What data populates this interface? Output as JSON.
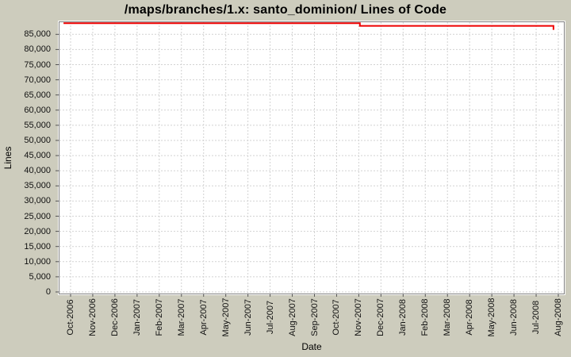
{
  "colors": {
    "page_bg": "#cdccbd",
    "plot_bg": "#ffffff",
    "grid": "#d2d2d2",
    "axis": "#808080",
    "tick": "#555555",
    "series_red": "#ee0000"
  },
  "chart_data": {
    "type": "line",
    "title": "/maps/branches/1.x: santo_dominion/ Lines of Code",
    "xlabel": "Date",
    "ylabel": "Lines",
    "legend": "none",
    "grid": "dashed horizontal and vertical gridlines",
    "ylim": [
      0,
      89000
    ],
    "y_tick_values": [
      0,
      5000,
      10000,
      15000,
      20000,
      25000,
      30000,
      35000,
      40000,
      45000,
      50000,
      55000,
      60000,
      65000,
      70000,
      75000,
      80000,
      85000
    ],
    "y_tick_labels": [
      "0",
      "5,000",
      "10,000",
      "15,000",
      "20,000",
      "25,000",
      "30,000",
      "35,000",
      "40,000",
      "45,000",
      "50,000",
      "55,000",
      "60,000",
      "65,000",
      "70,000",
      "75,000",
      "80,000",
      "85,000"
    ],
    "x_tick_labels": [
      "Oct-2006",
      "Nov-2006",
      "Dec-2006",
      "Jan-2007",
      "Feb-2007",
      "Mar-2007",
      "Apr-2007",
      "May-2007",
      "Jun-2007",
      "Jul-2007",
      "Aug-2007",
      "Sep-2007",
      "Oct-2007",
      "Nov-2007",
      "Dec-2007",
      "Jan-2008",
      "Feb-2008",
      "Mar-2008",
      "Apr-2008",
      "May-2008",
      "Jun-2008",
      "Jul-2008",
      "Aug-2008"
    ],
    "value_note": "values estimated from gridlines",
    "series": [
      {
        "name": "Lines of Code",
        "color": "#ee0000",
        "summary": "Roughly flat near 88,700 lines from Oct-2006 until Nov-2007, small step down to about 87,800, flat until late Jul-2008, ending with a drop to about 86,500.",
        "points": [
          {
            "date": "late Sep-2006",
            "xi": -0.32,
            "value": 88700
          },
          {
            "date": "Nov-2007",
            "xi": 13.05,
            "value": 88700
          },
          {
            "date": "Nov-2007",
            "xi": 13.05,
            "value": 87800
          },
          {
            "date": "late Jul-2008",
            "xi": 21.78,
            "value": 87800
          },
          {
            "date": "late Jul-2008",
            "xi": 21.78,
            "value": 86500
          }
        ]
      }
    ]
  }
}
